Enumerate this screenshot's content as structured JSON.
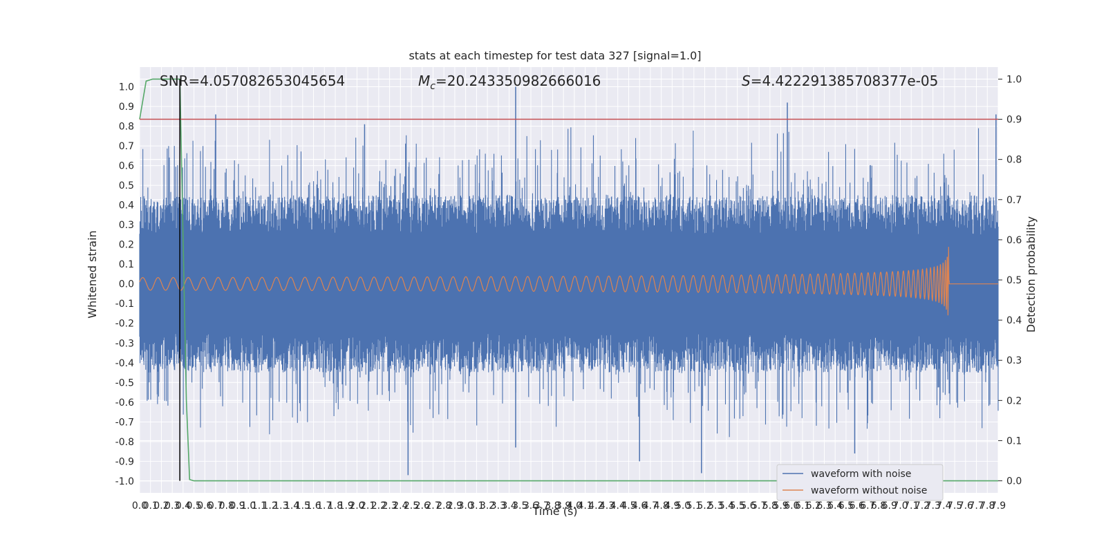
{
  "chart_data": {
    "type": "line",
    "title": "stats at each timestep for test data 327 [signal=1.0]",
    "xlabel": "Time (s)",
    "ylabel_left": "Whitened strain",
    "ylabel_right": "Detection probability",
    "xlim": [
      0.0,
      7.9
    ],
    "ylim_left": [
      -1.06,
      1.1
    ],
    "ylim_right": [
      -0.03,
      1.03
    ],
    "x_ticks": [
      "0.0",
      "0.1",
      "0.2",
      "0.3",
      "0.4",
      "0.5",
      "0.6",
      "0.7",
      "0.8",
      "0.9",
      "1.0",
      "1.1",
      "1.2",
      "1.3",
      "1.4",
      "1.5",
      "1.6",
      "1.7",
      "1.8",
      "1.9",
      "2.0",
      "2.1",
      "2.2",
      "2.3",
      "2.4",
      "2.5",
      "2.6",
      "2.7",
      "2.8",
      "2.9",
      "3.0",
      "3.1",
      "3.2",
      "3.3",
      "3.4",
      "3.5",
      "3.6",
      "3.7",
      "3.8",
      "3.9",
      "4.0",
      "4.1",
      "4.2",
      "4.3",
      "4.4",
      "4.5",
      "4.6",
      "4.7",
      "4.8",
      "4.9",
      "5.0",
      "5.1",
      "5.2",
      "5.3",
      "5.4",
      "5.5",
      "5.6",
      "5.7",
      "5.8",
      "5.9",
      "6.0",
      "6.1",
      "6.2",
      "6.3",
      "6.4",
      "6.5",
      "6.6",
      "6.7",
      "6.8",
      "6.9",
      "7.0",
      "7.1",
      "7.2",
      "7.3",
      "7.4",
      "7.5",
      "7.6",
      "7.7",
      "7.8",
      "7.9"
    ],
    "y_ticks_left": [
      "1.0",
      "0.9",
      "0.8",
      "0.7",
      "0.6",
      "0.5",
      "0.4",
      "0.3",
      "0.2",
      "0.1",
      "0.0",
      "-0.1",
      "-0.2",
      "-0.3",
      "-0.4",
      "-0.5",
      "-0.6",
      "-0.7",
      "-0.8",
      "-0.9",
      "-1.0"
    ],
    "y_ticks_right": [
      "1.0",
      "0.9",
      "0.8",
      "0.7",
      "0.6",
      "0.5",
      "0.4",
      "0.3",
      "0.2",
      "0.1",
      "0.0"
    ],
    "annotations": {
      "snr": "SNR=4.057082653045654",
      "mc_symbol": "M",
      "mc_sub": "c",
      "mc_value": "=20.243350982666016",
      "s_symbol": "S",
      "s_value": "=4.422291385708377e-05"
    },
    "series": [
      {
        "name": "waveform with noise",
        "color": "#4c72b0",
        "description_values": "dense noise, range approx -0.97 to 1.0",
        "envelope_typical": 0.45,
        "peaks": [
          [
            3.46,
            1.0
          ],
          [
            5.96,
            0.92
          ],
          [
            0.7,
            0.86
          ],
          [
            7.88,
            0.86
          ],
          [
            2.07,
            0.81
          ],
          [
            2.47,
            -0.97
          ],
          [
            5.17,
            -0.96
          ],
          [
            3.46,
            -0.83
          ],
          [
            6.58,
            -0.86
          ],
          [
            4.6,
            -0.9
          ]
        ]
      },
      {
        "name": "waveform without noise",
        "color": "#dd8452",
        "chirp_end_time": 7.45,
        "chirp_peak_amplitude": 0.21
      },
      {
        "name": "detection probability",
        "axis": "right",
        "color": "#55a868",
        "x": [
          0.0,
          0.06,
          0.12,
          0.2,
          0.3,
          0.37,
          0.4,
          0.43,
          0.46,
          0.5,
          7.9
        ],
        "y": [
          0.9,
          0.995,
          1.0,
          1.0,
          1.0,
          1.0,
          0.6,
          0.2,
          0.003,
          0.0,
          0.0
        ]
      }
    ],
    "reference_lines": {
      "threshold_right": 0.9,
      "threshold_color": "#c44e52",
      "vertical_x": 0.37,
      "vertical_color": "#000000"
    },
    "legend": {
      "placement": "lower right",
      "entries": [
        {
          "label": "waveform with noise",
          "color": "#4c72b0"
        },
        {
          "label": "waveform without noise",
          "color": "#dd8452"
        }
      ]
    },
    "grid": true,
    "background": "#eaeaf2"
  }
}
